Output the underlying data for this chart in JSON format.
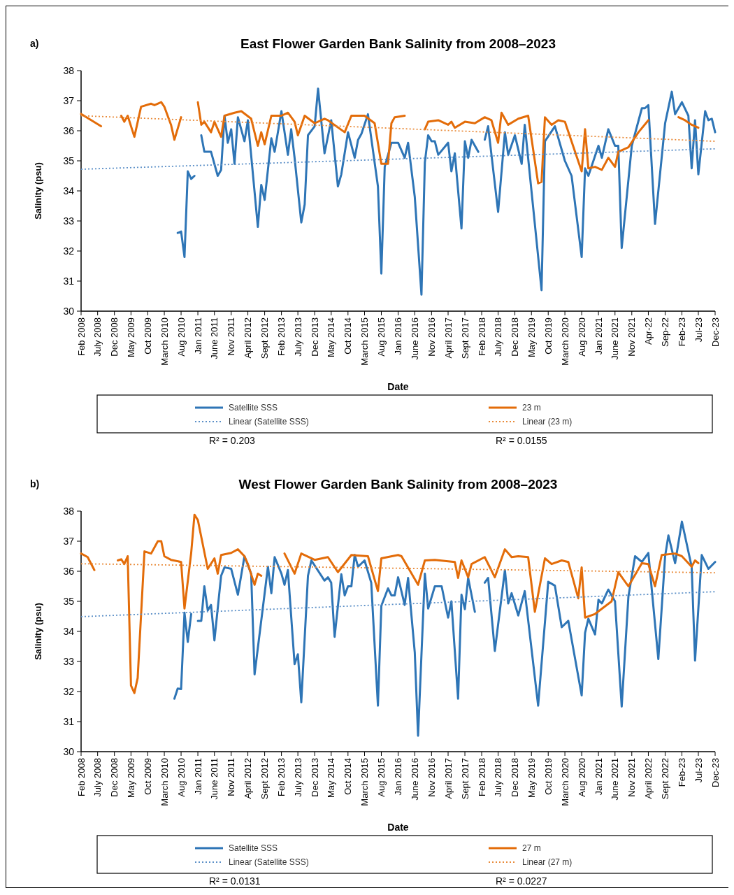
{
  "chart_data": [
    {
      "type": "line",
      "title": "East Flower Garden Bank Salinity from 2008–2023",
      "xlabel": "Date",
      "ylabel": "Salinity (psu)",
      "xlim": [
        "2008-02",
        "2023-12"
      ],
      "ylim": [
        30,
        38
      ],
      "yticks": [
        30,
        31,
        32,
        33,
        34,
        35,
        36,
        37,
        38
      ],
      "xticks": [
        {
          "value": "2008-02",
          "label": "Feb 2008"
        },
        {
          "value": "2008-07",
          "label": "July 2008"
        },
        {
          "value": "2008-12",
          "label": "Dec 2008"
        },
        {
          "value": "2009-05",
          "label": "May 2009"
        },
        {
          "value": "2009-10",
          "label": "Oct 2009"
        },
        {
          "value": "2010-03",
          "label": "March 2010"
        },
        {
          "value": "2010-08",
          "label": "Aug 2010"
        },
        {
          "value": "2011-01",
          "label": "Jan 2011"
        },
        {
          "value": "2011-06",
          "label": "June 2011"
        },
        {
          "value": "2011-11",
          "label": "Nov 2011"
        },
        {
          "value": "2012-04",
          "label": "April 2012"
        },
        {
          "value": "2012-09",
          "label": "Sept 2012"
        },
        {
          "value": "2013-02",
          "label": "Feb 2013"
        },
        {
          "value": "2013-07",
          "label": "July 2013"
        },
        {
          "value": "2013-12",
          "label": "Dec 2013"
        },
        {
          "value": "2014-05",
          "label": "May 2014"
        },
        {
          "value": "2014-10",
          "label": "Oct 2014"
        },
        {
          "value": "2015-03",
          "label": "March 2015"
        },
        {
          "value": "2015-08",
          "label": "Aug 2015"
        },
        {
          "value": "2016-01",
          "label": "Jan 2016"
        },
        {
          "value": "2016-06",
          "label": "June 2016"
        },
        {
          "value": "2016-11",
          "label": "Nov 2016"
        },
        {
          "value": "2017-04",
          "label": "April 2017"
        },
        {
          "value": "2017-09",
          "label": "Sept 2017"
        },
        {
          "value": "2018-02",
          "label": "Feb 2018"
        },
        {
          "value": "2018-07",
          "label": "July 2018"
        },
        {
          "value": "2018-12",
          "label": "Dec 2018"
        },
        {
          "value": "2019-05",
          "label": "May 2019"
        },
        {
          "value": "2019-10",
          "label": "Oct 2019"
        },
        {
          "value": "2020-03",
          "label": "March 2020"
        },
        {
          "value": "2020-08",
          "label": "Aug 2020"
        },
        {
          "value": "2021-01",
          "label": "Jan 2021"
        },
        {
          "value": "2021-06",
          "label": "June 2021"
        },
        {
          "value": "2021-11",
          "label": "Nov 2021"
        },
        {
          "value": "2022-04",
          "label": "Apr-22"
        },
        {
          "value": "2022-09",
          "label": "Sep-22"
        },
        {
          "value": "2023-02",
          "label": "Feb-23"
        },
        {
          "value": "2023-07",
          "label": "Jul-23"
        },
        {
          "value": "2023-12",
          "label": "Dec-23"
        }
      ],
      "legend": "bottom",
      "annotations": [
        "a)",
        "R² = 0.203",
        "R² = 0.0155"
      ],
      "series": [
        {
          "name": "Satellite SSS",
          "color": "#2e75b6",
          "line_style": "solid",
          "x": [
            "2010-07",
            "2010-08",
            "2010-09",
            "2010-10",
            "2010-11",
            "2010-12",
            "2011-01",
            "2011-02",
            "2011-03",
            "2011-05",
            "2011-07",
            "2011-08",
            "2011-09",
            "2011-10",
            "2011-11",
            "2011-12",
            "2012-01",
            "2012-03",
            "2012-04",
            "2012-07",
            "2012-08",
            "2012-09",
            "2012-11",
            "2012-12",
            "2013-02",
            "2013-04",
            "2013-05",
            "2013-06",
            "2013-08",
            "2013-09",
            "2013-10",
            "2013-12",
            "2014-01",
            "2014-03",
            "2014-05",
            "2014-07",
            "2014-08",
            "2014-10",
            "2014-12",
            "2015-01",
            "2015-02",
            "2015-04",
            "2015-07",
            "2015-08",
            "2015-09",
            "2015-11",
            "2016-01",
            "2016-03",
            "2016-04",
            "2016-06",
            "2016-08",
            "2016-09",
            "2016-10",
            "2016-11",
            "2016-12",
            "2017-01",
            "2017-04",
            "2017-05",
            "2017-06",
            "2017-08",
            "2017-09",
            "2017-10",
            "2017-11",
            "2018-01",
            "2018-02",
            "2018-03",
            "2018-04",
            "2018-07",
            "2018-09",
            "2018-10",
            "2018-12",
            "2019-02",
            "2019-03",
            "2019-08",
            "2019-09",
            "2019-12",
            "2020-03",
            "2020-05",
            "2020-08",
            "2020-09",
            "2020-10",
            "2021-01",
            "2021-02",
            "2021-04",
            "2021-06",
            "2021-07",
            "2021-08",
            "2021-11",
            "2022-02",
            "2022-03",
            "2022-04",
            "2022-06",
            "2022-09",
            "2022-11",
            "2022-12",
            "2023-02",
            "2023-04",
            "2023-05",
            "2023-06",
            "2023-07",
            "2023-09",
            "2023-10",
            "2023-11",
            "2023-12"
          ],
          "values": [
            32.6,
            32.65,
            31.8,
            34.65,
            34.4,
            34.5,
            null,
            35.85,
            35.3,
            35.3,
            34.5,
            34.7,
            36.5,
            35.6,
            36.05,
            34.9,
            36.45,
            35.65,
            36.35,
            32.8,
            34.2,
            33.7,
            35.75,
            35.3,
            36.65,
            35.2,
            36.05,
            35.1,
            32.95,
            33.55,
            35.85,
            36.15,
            37.4,
            35.25,
            36.35,
            34.15,
            34.55,
            35.95,
            35.1,
            35.7,
            35.9,
            36.55,
            34.15,
            31.25,
            34.8,
            35.6,
            35.6,
            35.1,
            35.6,
            33.8,
            30.55,
            34.95,
            35.85,
            35.65,
            35.65,
            35.2,
            35.6,
            34.65,
            35.25,
            32.75,
            35.65,
            35.1,
            35.7,
            35.3,
            null,
            35.7,
            36.15,
            33.3,
            35.95,
            35.2,
            35.85,
            34.9,
            36.2,
            30.7,
            35.65,
            36.15,
            35.0,
            34.5,
            31.8,
            34.75,
            34.5,
            35.5,
            35.1,
            36.05,
            35.5,
            35.5,
            32.1,
            35.5,
            36.75,
            36.75,
            36.85,
            32.9,
            36.25,
            37.3,
            36.55,
            36.95,
            36.5,
            34.75,
            36.35,
            34.55,
            36.65,
            36.35,
            36.4,
            35.95
          ]
        },
        {
          "name": "23 m",
          "color": "#e36c09",
          "line_style": "solid",
          "x": [
            "2008-02",
            "2008-08",
            "2008-11",
            "2009-02",
            "2009-03",
            "2009-04",
            "2009-06",
            "2009-08",
            "2009-11",
            "2009-12",
            "2010-02",
            "2010-03",
            "2010-05",
            "2010-06",
            "2010-08",
            "2010-10",
            "2011-01",
            "2011-02",
            "2011-03",
            "2011-05",
            "2011-06",
            "2011-08",
            "2011-09",
            "2011-12",
            "2012-02",
            "2012-05",
            "2012-07",
            "2012-08",
            "2012-09",
            "2012-11",
            "2013-02",
            "2013-04",
            "2013-06",
            "2013-07",
            "2013-09",
            "2013-12",
            "2014-03",
            "2014-04",
            "2014-09",
            "2014-11",
            "2015-03",
            "2015-06",
            "2015-08",
            "2015-10",
            "2015-11",
            "2015-12",
            "2016-03",
            "2016-06",
            "2016-09",
            "2016-10",
            "2017-01",
            "2017-04",
            "2017-05",
            "2017-06",
            "2017-09",
            "2017-12",
            "2018-03",
            "2018-05",
            "2018-07",
            "2018-08",
            "2018-10",
            "2019-01",
            "2019-04",
            "2019-07",
            "2019-08",
            "2019-09",
            "2019-11",
            "2020-01",
            "2020-03",
            "2020-08",
            "2020-09",
            "2020-10",
            "2020-12",
            "2021-02",
            "2021-04",
            "2021-06",
            "2021-07",
            "2021-10",
            "2022-01",
            "2022-04",
            "2022-09",
            "2023-01",
            "2023-03",
            "2023-05",
            "2023-07"
          ],
          "values": [
            36.56,
            36.15,
            null,
            36.5,
            36.3,
            36.5,
            35.8,
            36.8,
            36.9,
            36.85,
            36.95,
            36.8,
            36.2,
            35.7,
            36.45,
            null,
            36.95,
            36.2,
            36.3,
            35.95,
            36.3,
            35.8,
            36.5,
            36.6,
            36.65,
            36.4,
            35.5,
            35.95,
            35.55,
            36.5,
            36.5,
            36.6,
            36.3,
            35.85,
            36.5,
            36.25,
            36.4,
            36.35,
            35.95,
            36.5,
            36.5,
            36.25,
            34.9,
            34.9,
            36.25,
            36.45,
            36.5,
            null,
            36.05,
            36.3,
            36.35,
            36.2,
            36.3,
            36.1,
            36.3,
            36.25,
            36.45,
            36.35,
            35.6,
            36.6,
            36.2,
            36.4,
            36.5,
            34.25,
            34.3,
            36.45,
            36.2,
            36.35,
            36.3,
            34.65,
            36.05,
            34.75,
            34.8,
            34.7,
            35.1,
            34.8,
            35.3,
            35.45,
            35.95,
            36.35,
            null,
            36.45,
            36.35,
            36.2,
            36.1
          ]
        },
        {
          "name": "Linear (Satellite SSS)",
          "color": "#5b8fc7",
          "line_style": "dotted",
          "x": [
            "2008-02",
            "2023-12"
          ],
          "values": [
            34.72,
            35.4
          ]
        },
        {
          "name": "Linear (23 m)",
          "color": "#e98b3a",
          "line_style": "dotted",
          "x": [
            "2008-02",
            "2023-12"
          ],
          "values": [
            36.5,
            35.65
          ]
        }
      ]
    },
    {
      "type": "line",
      "title": "West Flower Garden Bank Salinity from 2008–2023",
      "xlabel": "Date",
      "ylabel": "Salinity (psu)",
      "xlim": [
        "2008-02",
        "2023-12"
      ],
      "ylim": [
        30,
        38
      ],
      "yticks": [
        30,
        31,
        32,
        33,
        34,
        35,
        36,
        37,
        38
      ],
      "xticks": [
        {
          "value": "2008-02",
          "label": "Feb 2008"
        },
        {
          "value": "2008-07",
          "label": "July 2008"
        },
        {
          "value": "2008-12",
          "label": "Dec 2008"
        },
        {
          "value": "2009-05",
          "label": "May 2009"
        },
        {
          "value": "2009-10",
          "label": "Oct 2009"
        },
        {
          "value": "2010-03",
          "label": "March 2010"
        },
        {
          "value": "2010-08",
          "label": "Aug 2010"
        },
        {
          "value": "2011-01",
          "label": "Jan 2011"
        },
        {
          "value": "2011-06",
          "label": "June 2011"
        },
        {
          "value": "2011-11",
          "label": "Nov 2011"
        },
        {
          "value": "2012-04",
          "label": "April 2012"
        },
        {
          "value": "2012-09",
          "label": "Sept 2012"
        },
        {
          "value": "2013-02",
          "label": "Feb 2013"
        },
        {
          "value": "2013-07",
          "label": "July 2013"
        },
        {
          "value": "2013-12",
          "label": "Dec 2013"
        },
        {
          "value": "2014-05",
          "label": "May 2014"
        },
        {
          "value": "2014-10",
          "label": "Oct 2014"
        },
        {
          "value": "2015-03",
          "label": "March 2015"
        },
        {
          "value": "2015-08",
          "label": "Aug 2015"
        },
        {
          "value": "2016-01",
          "label": "Jan 2016"
        },
        {
          "value": "2016-06",
          "label": "June 2016"
        },
        {
          "value": "2016-11",
          "label": "Nov 2016"
        },
        {
          "value": "2017-04",
          "label": "April 2017"
        },
        {
          "value": "2017-09",
          "label": "Sept 2017"
        },
        {
          "value": "2018-02",
          "label": "Feb 2018"
        },
        {
          "value": "2018-07",
          "label": "July 2018"
        },
        {
          "value": "2018-12",
          "label": "Dec 2018"
        },
        {
          "value": "2019-05",
          "label": "May 2019"
        },
        {
          "value": "2019-10",
          "label": "Oct 2019"
        },
        {
          "value": "2020-03",
          "label": "March 2020"
        },
        {
          "value": "2020-08",
          "label": "Aug 2020"
        },
        {
          "value": "2021-01",
          "label": "Jan 2021"
        },
        {
          "value": "2021-06",
          "label": "June 2021"
        },
        {
          "value": "2021-11",
          "label": "Nov 2021"
        },
        {
          "value": "2022-04",
          "label": "April 2022"
        },
        {
          "value": "2022-09",
          "label": "Sept 2022"
        },
        {
          "value": "2023-02",
          "label": "Feb-23"
        },
        {
          "value": "2023-07",
          "label": "Jul-23"
        },
        {
          "value": "2023-12",
          "label": "Dec-23"
        }
      ],
      "legend": "bottom",
      "annotations": [
        "b)",
        "R² = 0.0131",
        "R² = 0.0227"
      ],
      "series": [
        {
          "name": "Satellite SSS",
          "color": "#2e75b6",
          "line_style": "solid",
          "x": [
            "2010-06",
            "2010-07",
            "2010-08",
            "2010-09",
            "2010-10",
            "2010-11",
            "2010-12",
            "2011-01",
            "2011-02",
            "2011-03",
            "2011-04",
            "2011-05",
            "2011-06",
            "2011-08",
            "2011-09",
            "2011-11",
            "2012-01",
            "2012-03",
            "2012-05",
            "2012-06",
            "2012-10",
            "2012-11",
            "2012-12",
            "2013-02",
            "2013-03",
            "2013-04",
            "2013-06",
            "2013-07",
            "2013-08",
            "2013-10",
            "2013-11",
            "2014-03",
            "2014-04",
            "2014-05",
            "2014-06",
            "2014-08",
            "2014-09",
            "2014-10",
            "2014-11",
            "2014-12",
            "2015-01",
            "2015-03",
            "2015-05",
            "2015-07",
            "2015-08",
            "2015-10",
            "2015-11",
            "2015-12",
            "2016-01",
            "2016-03",
            "2016-04",
            "2016-06",
            "2016-07",
            "2016-09",
            "2016-10",
            "2016-12",
            "2017-02",
            "2017-04",
            "2017-05",
            "2017-07",
            "2017-08",
            "2017-09",
            "2017-10",
            "2017-12",
            "2018-01",
            "2018-03",
            "2018-04",
            "2018-06",
            "2018-09",
            "2018-10",
            "2018-11",
            "2019-01",
            "2019-03",
            "2019-07",
            "2019-10",
            "2019-12",
            "2020-02",
            "2020-04",
            "2020-08",
            "2020-09",
            "2020-10",
            "2020-12",
            "2021-01",
            "2021-02",
            "2021-04",
            "2021-06",
            "2021-08",
            "2021-10",
            "2021-12",
            "2022-02",
            "2022-04",
            "2022-07",
            "2022-09",
            "2022-10",
            "2022-12",
            "2023-02",
            "2023-05",
            "2023-06",
            "2023-08",
            "2023-10",
            "2023-12"
          ],
          "values": [
            31.76,
            32.1,
            32.08,
            34.62,
            33.65,
            34.58,
            null,
            34.35,
            34.35,
            35.5,
            34.7,
            34.88,
            33.7,
            35.85,
            36.13,
            36.08,
            35.22,
            36.5,
            35.92,
            32.57,
            36.15,
            35.27,
            36.47,
            35.92,
            35.55,
            36.04,
            32.91,
            33.24,
            31.64,
            35.85,
            36.36,
            35.69,
            35.8,
            35.62,
            33.82,
            35.9,
            35.2,
            35.5,
            35.5,
            36.54,
            36.15,
            36.36,
            35.62,
            31.53,
            34.85,
            35.43,
            35.2,
            35.2,
            35.8,
            34.88,
            35.78,
            33.3,
            30.53,
            35.92,
            34.76,
            35.5,
            35.5,
            34.46,
            35.0,
            31.76,
            35.22,
            34.74,
            35.78,
            34.65,
            null,
            35.62,
            35.78,
            33.35,
            36.04,
            34.93,
            35.27,
            34.53,
            35.34,
            31.53,
            35.65,
            35.52,
            34.14,
            34.35,
            31.87,
            33.95,
            34.42,
            33.9,
            35.05,
            34.93,
            35.39,
            35.0,
            31.5,
            35.15,
            36.5,
            36.31,
            36.61,
            33.08,
            36.5,
            37.19,
            36.27,
            37.65,
            36.15,
            33.03,
            36.54,
            36.08,
            36.31
          ]
        },
        {
          "name": "27 m",
          "color": "#e36c09",
          "line_style": "solid",
          "x": [
            "2008-02",
            "2008-04",
            "2008-06",
            "2008-09",
            "2009-01",
            "2009-02",
            "2009-03",
            "2009-04",
            "2009-05",
            "2009-06",
            "2009-07",
            "2009-09",
            "2009-11",
            "2010-01",
            "2010-02",
            "2010-03",
            "2010-05",
            "2010-08",
            "2010-09",
            "2010-11",
            "2010-12",
            "2011-01",
            "2011-04",
            "2011-06",
            "2011-07",
            "2011-08",
            "2011-11",
            "2012-01",
            "2012-03",
            "2012-04",
            "2012-06",
            "2012-07",
            "2012-08",
            "2012-11",
            "2013-03",
            "2013-06",
            "2013-08",
            "2013-12",
            "2014-04",
            "2014-07",
            "2014-11",
            "2015-04",
            "2015-07",
            "2015-08",
            "2016-01",
            "2016-02",
            "2016-07",
            "2016-09",
            "2016-12",
            "2017-06",
            "2017-07",
            "2017-08",
            "2017-10",
            "2017-11",
            "2018-03",
            "2018-06",
            "2018-09",
            "2018-11",
            "2019-01",
            "2019-04",
            "2019-06",
            "2019-09",
            "2019-11",
            "2020-02",
            "2020-04",
            "2020-07",
            "2020-08",
            "2020-09",
            "2020-12",
            "2021-05",
            "2021-07",
            "2021-10",
            "2022-02",
            "2022-04",
            "2022-06",
            "2022-08",
            "2022-12",
            "2023-02",
            "2023-05",
            "2023-06",
            "2023-07"
          ],
          "values": [
            36.59,
            36.47,
            36.04,
            null,
            36.36,
            36.4,
            36.24,
            36.5,
            32.2,
            31.95,
            32.45,
            36.66,
            36.59,
            37.0,
            37.0,
            36.5,
            36.38,
            36.31,
            34.76,
            36.61,
            37.88,
            37.7,
            36.08,
            36.43,
            35.92,
            36.54,
            36.61,
            36.73,
            36.5,
            36.24,
            35.55,
            35.92,
            35.85,
            null,
            36.59,
            35.92,
            36.59,
            36.38,
            36.47,
            35.97,
            36.54,
            36.5,
            35.34,
            36.43,
            36.54,
            36.5,
            35.55,
            36.36,
            36.38,
            36.31,
            35.78,
            36.36,
            35.8,
            36.24,
            36.47,
            35.8,
            36.73,
            36.47,
            36.5,
            36.47,
            34.65,
            36.43,
            36.24,
            36.36,
            36.31,
            35.1,
            36.13,
            34.46,
            34.58,
            35.0,
            35.97,
            35.5,
            36.27,
            36.24,
            35.5,
            36.54,
            36.59,
            36.5,
            36.15,
            36.36,
            36.27
          ]
        },
        {
          "name": "Linear (Satellite SSS)",
          "color": "#5b8fc7",
          "line_style": "dotted",
          "x": [
            "2008-02",
            "2023-12"
          ],
          "values": [
            34.49,
            35.32
          ]
        },
        {
          "name": "Linear (27 m)",
          "color": "#e98b3a",
          "line_style": "dotted",
          "x": [
            "2008-02",
            "2023-12"
          ],
          "values": [
            36.25,
            35.95
          ]
        }
      ]
    }
  ]
}
